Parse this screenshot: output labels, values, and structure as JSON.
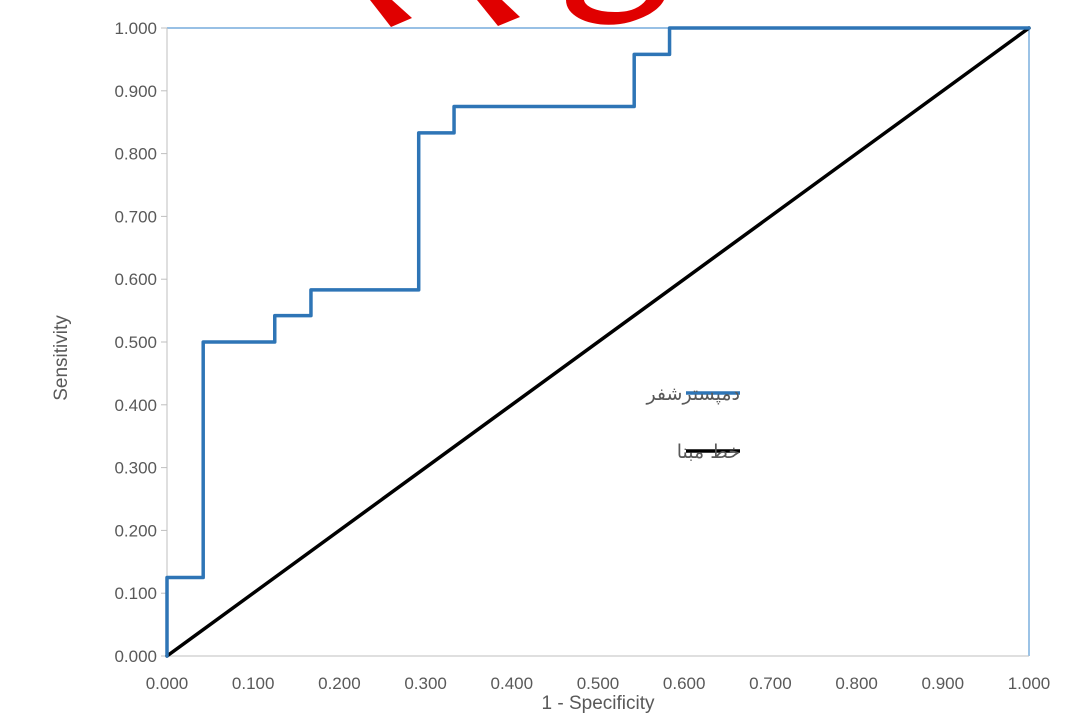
{
  "chart_data": {
    "type": "line",
    "xlabel": "1 - Specificity",
    "ylabel": "Sensitivity",
    "xlim": [
      0,
      1
    ],
    "ylim": [
      0,
      1
    ],
    "x_ticks": [
      "0.000",
      "0.100",
      "0.200",
      "0.300",
      "0.400",
      "0.500",
      "0.600",
      "0.700",
      "0.800",
      "0.900",
      "1.000"
    ],
    "y_ticks": [
      "0.000",
      "0.100",
      "0.200",
      "0.300",
      "0.400",
      "0.500",
      "0.600",
      "0.700",
      "0.800",
      "0.900",
      "1.000"
    ],
    "grid": false,
    "legend_position": "right",
    "series": [
      {
        "name": "دمپسترشفر",
        "color": "#2E75B6",
        "x": [
          0.0,
          0.0,
          0.042,
          0.042,
          0.125,
          0.125,
          0.167,
          0.167,
          0.292,
          0.292,
          0.333,
          0.333,
          0.542,
          0.542,
          0.583,
          0.583,
          1.0
        ],
        "y": [
          0.0,
          0.125,
          0.125,
          0.5,
          0.5,
          0.542,
          0.542,
          0.583,
          0.583,
          0.833,
          0.833,
          0.875,
          0.875,
          0.958,
          0.958,
          1.0,
          1.0
        ]
      },
      {
        "name": "خط مبنا",
        "color": "#000000",
        "x": [
          0,
          1
        ],
        "y": [
          0,
          1
        ]
      }
    ]
  }
}
